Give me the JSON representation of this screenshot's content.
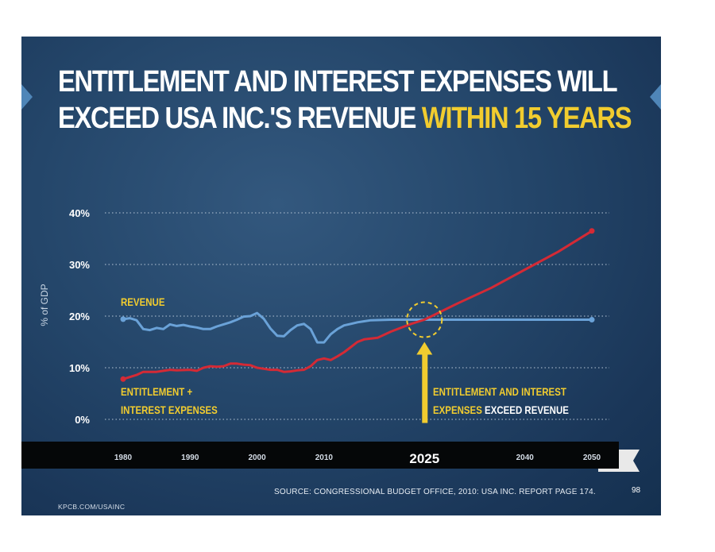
{
  "slide": {
    "title_line1": "ENTITLEMENT AND INTEREST EXPENSES WILL",
    "title_line2_white": "EXCEED USA INC.'S REVENUE",
    "title_line2_highlight": "WITHIN 15 YEARS",
    "source": "SOURCE: CONGRESSIONAL BUDGET OFFICE, 2010: USA INC. REPORT PAGE 174.",
    "page_number": "98",
    "site": "KPCB.COM/USAINC"
  },
  "colors": {
    "background": "#1f3d62",
    "revenue_line": "#6aa2d8",
    "expenses_line": "#d42a35",
    "highlight": "#f1cc2f",
    "grid": "#b9c8d8"
  },
  "chart_data": {
    "type": "line",
    "title": "ENTITLEMENT AND INTEREST EXPENSES WILL EXCEED USA INC.'S REVENUE WITHIN 15 YEARS",
    "ylabel": "% of GDP",
    "xlabel": "",
    "ylim": [
      0,
      40
    ],
    "xlim": [
      1980,
      2050
    ],
    "yticks": [
      "0%",
      "10%",
      "20%",
      "30%",
      "40%"
    ],
    "xticks": [
      "1980",
      "1990",
      "2000",
      "2010",
      "2025",
      "2040",
      "2050"
    ],
    "grid": true,
    "series": [
      {
        "name": "REVENUE",
        "points": [
          [
            1980,
            19.4
          ],
          [
            1981,
            19.6
          ],
          [
            1982,
            19.2
          ],
          [
            1983,
            17.5
          ],
          [
            1984,
            17.3
          ],
          [
            1985,
            17.7
          ],
          [
            1986,
            17.5
          ],
          [
            1987,
            18.4
          ],
          [
            1988,
            18.1
          ],
          [
            1989,
            18.3
          ],
          [
            1990,
            18.0
          ],
          [
            1991,
            17.8
          ],
          [
            1992,
            17.5
          ],
          [
            1993,
            17.5
          ],
          [
            1994,
            18.0
          ],
          [
            1995,
            18.4
          ],
          [
            1996,
            18.8
          ],
          [
            1997,
            19.3
          ],
          [
            1998,
            19.9
          ],
          [
            1999,
            20.0
          ],
          [
            2000,
            20.6
          ],
          [
            2001,
            19.5
          ],
          [
            2002,
            17.6
          ],
          [
            2003,
            16.2
          ],
          [
            2004,
            16.1
          ],
          [
            2005,
            17.3
          ],
          [
            2006,
            18.2
          ],
          [
            2007,
            18.5
          ],
          [
            2008,
            17.5
          ],
          [
            2009,
            14.9
          ],
          [
            2010,
            14.9
          ],
          [
            2011,
            16.5
          ],
          [
            2012,
            17.5
          ],
          [
            2013,
            18.2
          ],
          [
            2014,
            18.5
          ],
          [
            2015,
            18.8
          ],
          [
            2016,
            19.0
          ],
          [
            2017,
            19.2
          ],
          [
            2020,
            19.3
          ],
          [
            2025,
            19.3
          ],
          [
            2030,
            19.3
          ],
          [
            2040,
            19.3
          ],
          [
            2050,
            19.3
          ]
        ]
      },
      {
        "name": "ENTITLEMENT + INTEREST EXPENSES",
        "points": [
          [
            1980,
            7.8
          ],
          [
            1982,
            8.6
          ],
          [
            1983,
            9.2
          ],
          [
            1985,
            9.2
          ],
          [
            1986,
            9.4
          ],
          [
            1987,
            9.6
          ],
          [
            1988,
            9.5
          ],
          [
            1990,
            9.6
          ],
          [
            1991,
            9.4
          ],
          [
            1992,
            10.0
          ],
          [
            1993,
            10.3
          ],
          [
            1994,
            10.2
          ],
          [
            1995,
            10.3
          ],
          [
            1996,
            10.8
          ],
          [
            1997,
            10.8
          ],
          [
            1998,
            10.6
          ],
          [
            1999,
            10.5
          ],
          [
            2000,
            10.0
          ],
          [
            2001,
            9.8
          ],
          [
            2002,
            9.6
          ],
          [
            2003,
            9.6
          ],
          [
            2004,
            9.2
          ],
          [
            2005,
            9.3
          ],
          [
            2006,
            9.5
          ],
          [
            2007,
            9.6
          ],
          [
            2008,
            10.3
          ],
          [
            2009,
            11.5
          ],
          [
            2010,
            11.8
          ],
          [
            2011,
            11.5
          ],
          [
            2012,
            12.2
          ],
          [
            2013,
            13.0
          ],
          [
            2014,
            14.0
          ],
          [
            2015,
            15.0
          ],
          [
            2016,
            15.5
          ],
          [
            2018,
            15.8
          ],
          [
            2020,
            17.0
          ],
          [
            2023,
            18.5
          ],
          [
            2025,
            19.3
          ],
          [
            2030,
            22.5
          ],
          [
            2035,
            25.5
          ],
          [
            2040,
            29.0
          ],
          [
            2045,
            32.5
          ],
          [
            2050,
            36.5
          ]
        ]
      }
    ],
    "annotations": [
      {
        "text_line1": "ENTITLEMENT +",
        "text_line2": "INTEREST EXPENSES"
      },
      {
        "text_line1": "ENTITLEMENT AND INTEREST",
        "text_line2_yellow": "EXPENSES",
        "text_line2_white": "EXCEED REVENUE"
      }
    ],
    "crossover_year": 2025
  }
}
